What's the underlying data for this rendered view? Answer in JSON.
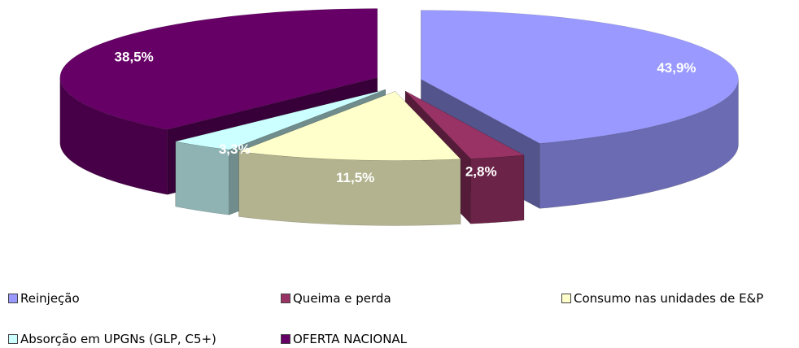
{
  "chart_data": {
    "type": "pie",
    "categories": [
      "Reinjeção",
      "Queima e perda",
      "Consumo nas unidades de E&P",
      "Absorção em UPGNs (GLP, C5+)",
      "OFERTA NACIONAL"
    ],
    "values": [
      43.9,
      2.8,
      11.5,
      3.3,
      38.5
    ],
    "value_labels": [
      "43,9%",
      "2,8%",
      "11,5%",
      "3,3%",
      "38,5%"
    ],
    "colors": [
      "#9999ff",
      "#993366",
      "#ffffcc",
      "#ccffff",
      "#660066"
    ],
    "legend": "bottom"
  }
}
